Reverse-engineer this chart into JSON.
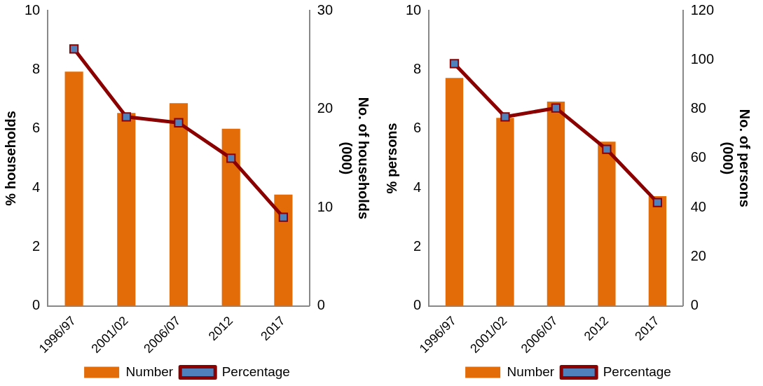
{
  "chart_data": [
    {
      "type": "bar",
      "categories": [
        "1996/97",
        "2001/02",
        "2006/07",
        "2012",
        "2017"
      ],
      "ylabel": "% households",
      "y2label": "No. of households (000)",
      "ylim": [
        0,
        10
      ],
      "yticks": [
        0,
        2,
        4,
        6,
        8,
        10
      ],
      "y2lim": [
        0,
        30
      ],
      "y2ticks": [
        0,
        10,
        20,
        30
      ],
      "legend": "bottom",
      "marker": "square",
      "series": [
        {
          "name": "Number",
          "axis": "y2",
          "color": "#e36c09",
          "values": [
            23.8,
            19.6,
            20.6,
            18.0,
            11.3
          ]
        },
        {
          "name": "Percentage",
          "type": "line",
          "color": "#8b0000",
          "values": [
            8.7,
            6.4,
            6.2,
            5.0,
            3.0
          ]
        }
      ]
    },
    {
      "type": "bar",
      "categories": [
        "1996/97",
        "2001/02",
        "2006/07",
        "2012",
        "2017"
      ],
      "ylabel": "% persons",
      "y2label": "No. of persons (000)",
      "ylim": [
        0,
        10
      ],
      "yticks": [
        0,
        2,
        4,
        6,
        8,
        10
      ],
      "y2lim": [
        0,
        120
      ],
      "y2ticks": [
        0,
        20,
        40,
        60,
        80,
        100,
        120
      ],
      "legend": "bottom",
      "marker": "square",
      "series": [
        {
          "name": "Number",
          "axis": "y2",
          "color": "#e36c09",
          "values": [
            92.6,
            76.4,
            83,
            66.7,
            44.6
          ]
        },
        {
          "name": "Percentage",
          "type": "line",
          "color": "#8b0000",
          "values": [
            8.2,
            6.4,
            6.7,
            5.3,
            3.5
          ]
        }
      ]
    }
  ]
}
